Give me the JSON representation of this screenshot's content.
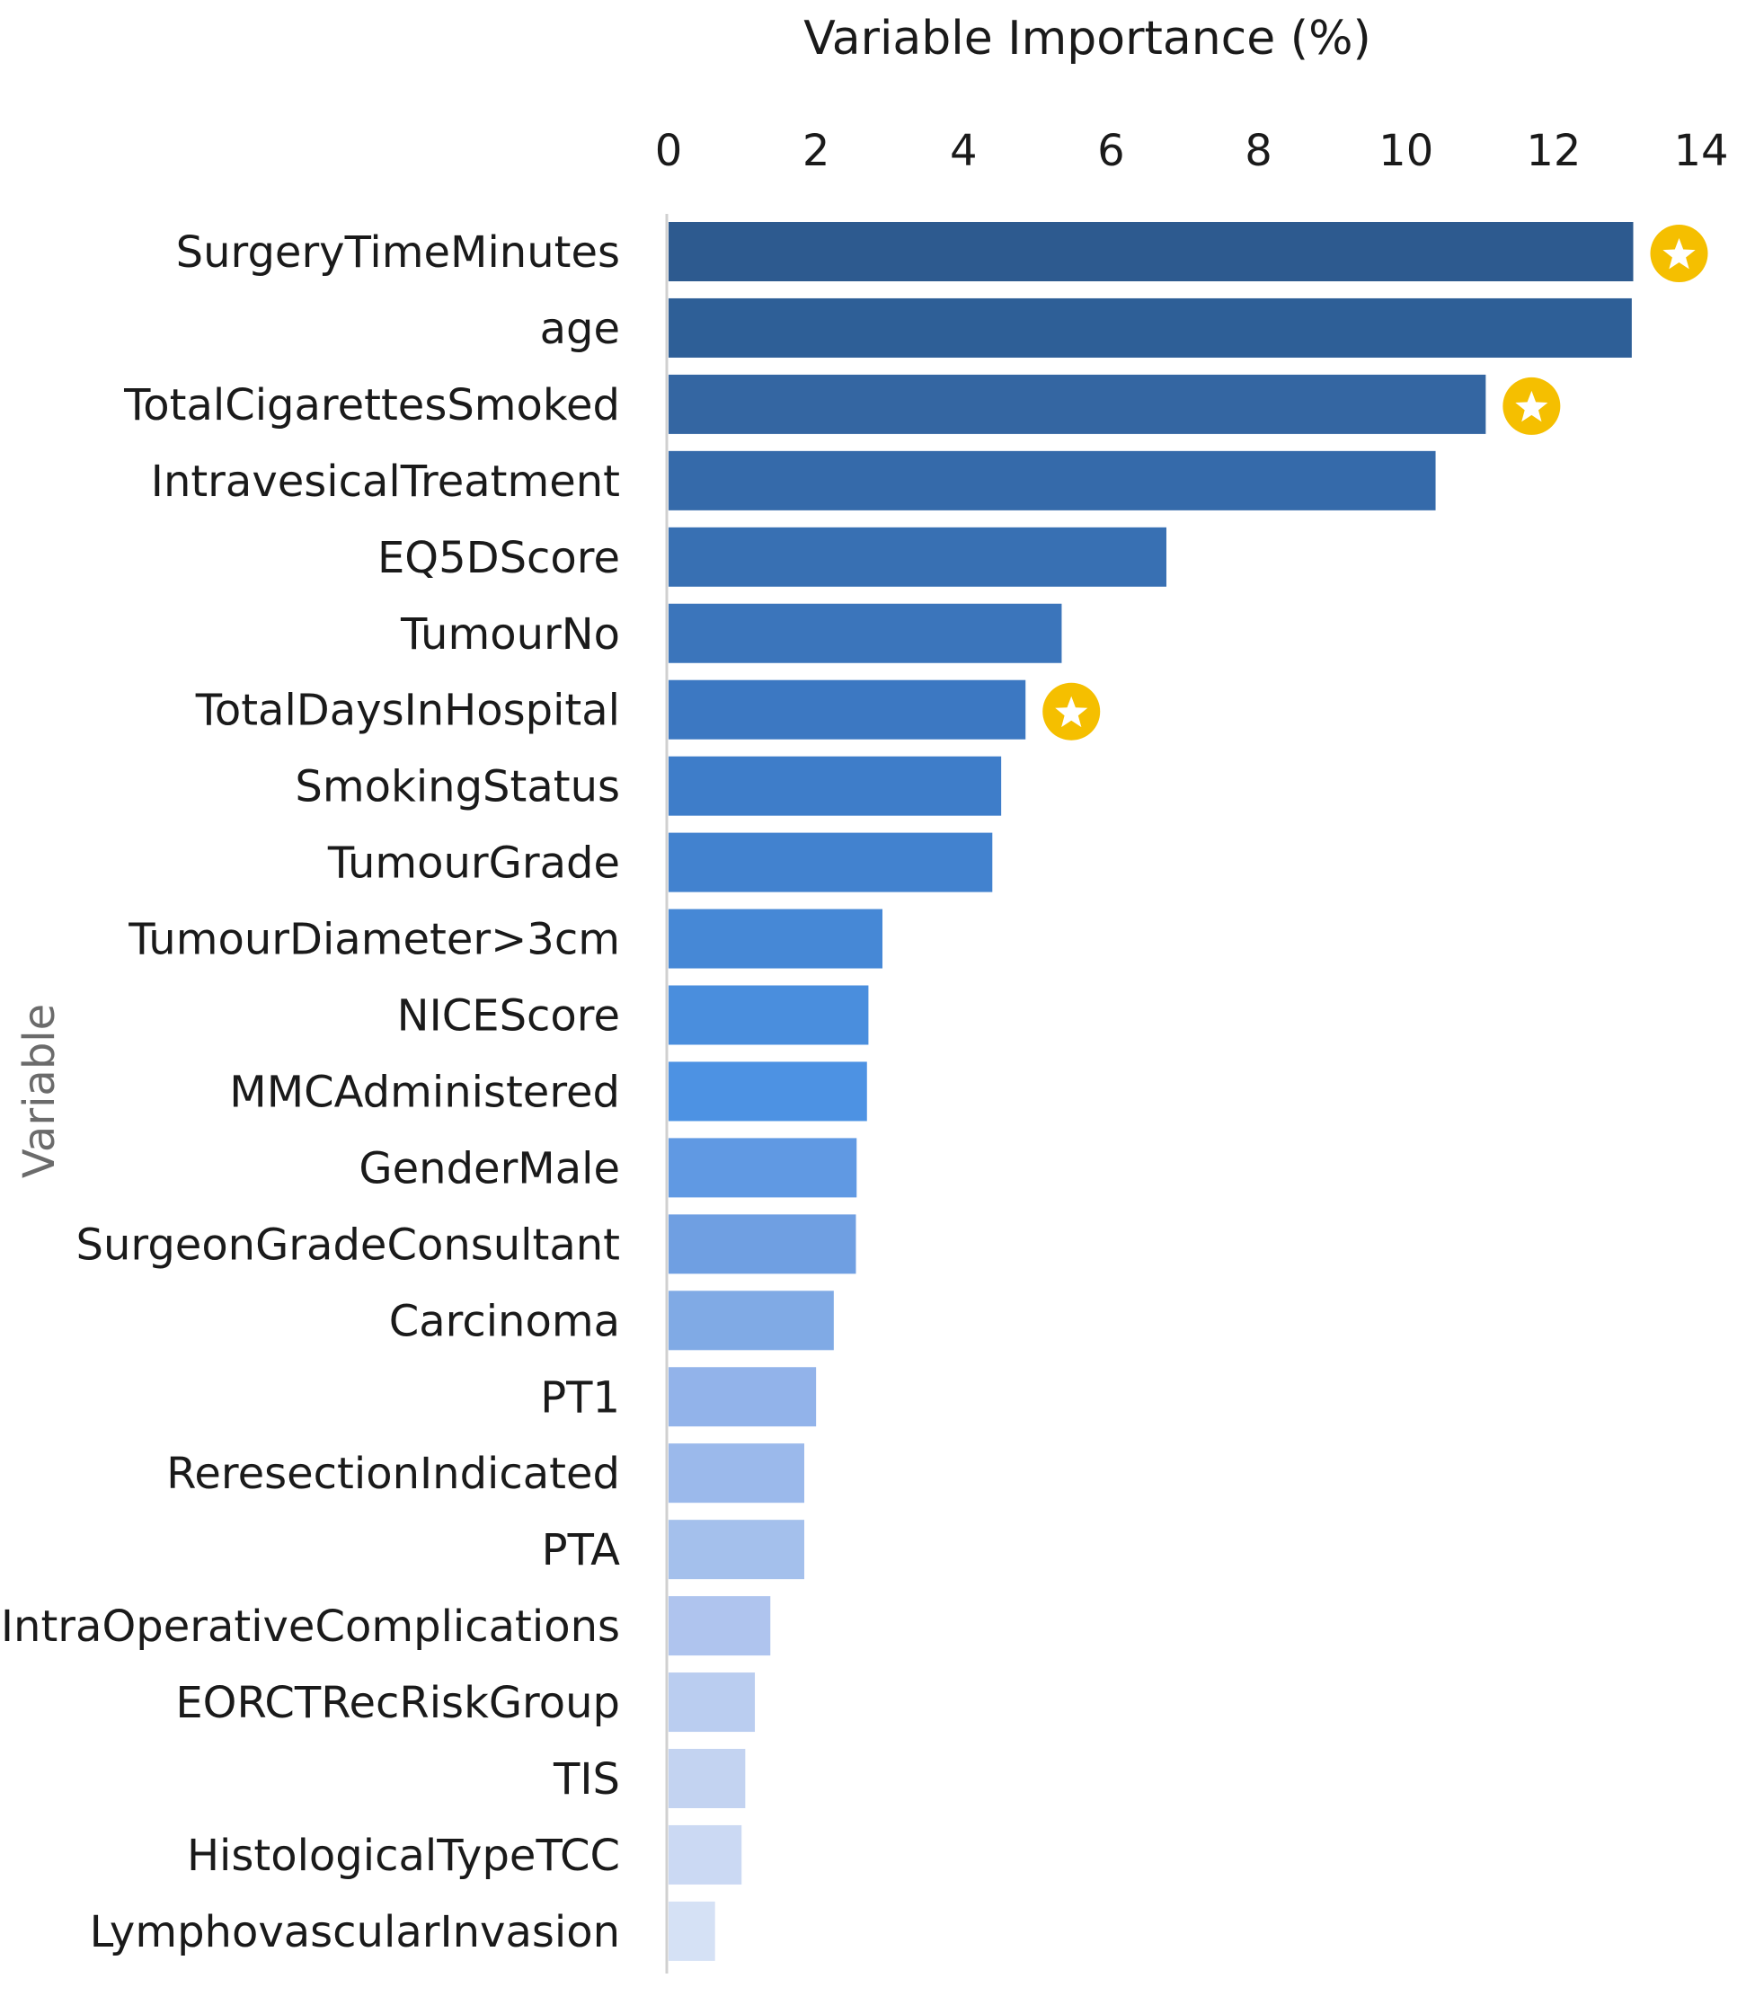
{
  "chart_data": {
    "type": "bar",
    "orientation": "horizontal",
    "title": "Variable Importance (%)",
    "xlabel": "Variable Importance (%)",
    "ylabel": "Variable",
    "xlim": [
      0,
      14
    ],
    "xticks": [
      0,
      2,
      4,
      6,
      8,
      10,
      12,
      14
    ],
    "x_axis_position": "top",
    "grid": false,
    "categories": [
      "SurgeryTimeMinutes",
      "age",
      "TotalCigarettesSmoked",
      "IntravesicalTreatment",
      "EQ5DScore",
      "TumourNo",
      "TotalDaysInHospital",
      "SmokingStatus",
      "TumourGrade",
      "TumourDiameter>3cm",
      "NICEScore",
      "MMCAdministered",
      "GenderMale",
      "SurgeonGradeConsultant",
      "Carcinoma",
      "PT1",
      "ReresectionIndicated",
      "PTA",
      "IntraOperativeComplications",
      "EORCTRecRiskGroup",
      "TIS",
      "HistologicalTypeTCC",
      "LymphovascularInvasion"
    ],
    "values": [
      13.08,
      13.06,
      11.08,
      10.4,
      6.75,
      5.33,
      4.84,
      4.51,
      4.39,
      2.9,
      2.71,
      2.69,
      2.55,
      2.54,
      2.24,
      2.0,
      1.84,
      1.84,
      1.38,
      1.17,
      1.04,
      0.99,
      0.63
    ],
    "colors": [
      "#2d5a8f",
      "#2e5f97",
      "#3466a2",
      "#356aaa",
      "#3870b3",
      "#3b75bb",
      "#3c78c2",
      "#3e7dc9",
      "#4282cf",
      "#4688d6",
      "#4a8edd",
      "#4d92e3",
      "#6099e3",
      "#6f9fe2",
      "#80aae5",
      "#92b3ea",
      "#9bb9eb",
      "#a4c0ec",
      "#afc4ee",
      "#bacdf0",
      "#c3d3f1",
      "#cbd9f3",
      "#d5e1f5"
    ],
    "starred": [
      "SurgeryTimeMinutes",
      "TotalCigarettesSmoked",
      "TotalDaysInHospital"
    ],
    "star_color": "#f5bf00"
  }
}
